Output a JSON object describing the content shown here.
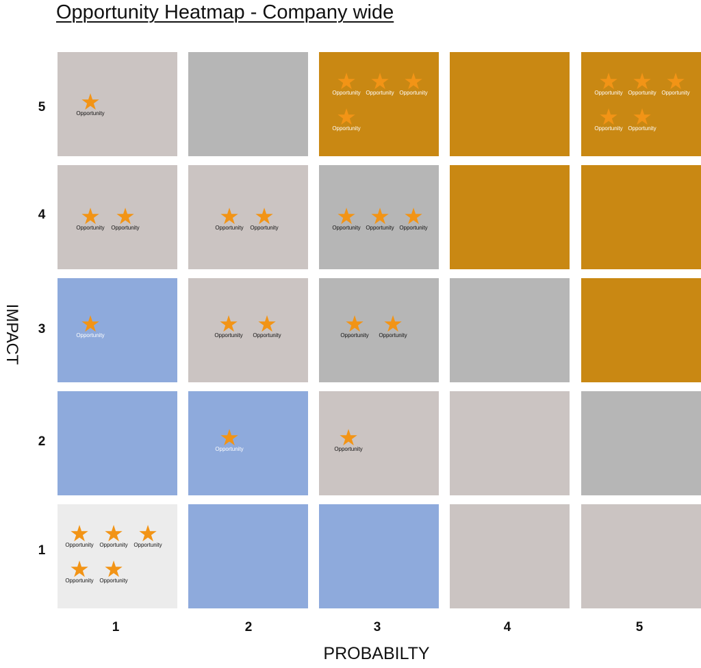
{
  "chart_data": {
    "type": "heatmap",
    "title": "Opportunity Heatmap - Company wide",
    "xlabel": "PROBABILTY",
    "ylabel": "IMPACT",
    "x_categories": [
      "1",
      "2",
      "3",
      "4",
      "5"
    ],
    "y_categories": [
      "1",
      "2",
      "3",
      "4",
      "5"
    ],
    "marker_label": "Opportunity",
    "marker_icon": "star-icon",
    "colors": {
      "very_low": "#ececec",
      "blue": "#8eaadc",
      "light_taupe": "#cbc4c2",
      "gray": "#b6b6b6",
      "gold": "#c98813",
      "star": "#f29416"
    },
    "cells": [
      {
        "probability": 1,
        "impact": 5,
        "color": "#cbc4c2",
        "count": 1
      },
      {
        "probability": 2,
        "impact": 5,
        "color": "#b6b6b6",
        "count": 0
      },
      {
        "probability": 3,
        "impact": 5,
        "color": "#c98813",
        "count": 4
      },
      {
        "probability": 4,
        "impact": 5,
        "color": "#c98813",
        "count": 0
      },
      {
        "probability": 5,
        "impact": 5,
        "color": "#c98813",
        "count": 5
      },
      {
        "probability": 1,
        "impact": 4,
        "color": "#cbc4c2",
        "count": 2
      },
      {
        "probability": 2,
        "impact": 4,
        "color": "#cbc4c2",
        "count": 2
      },
      {
        "probability": 3,
        "impact": 4,
        "color": "#b6b6b6",
        "count": 3
      },
      {
        "probability": 4,
        "impact": 4,
        "color": "#c98813",
        "count": 0
      },
      {
        "probability": 5,
        "impact": 4,
        "color": "#c98813",
        "count": 0
      },
      {
        "probability": 1,
        "impact": 3,
        "color": "#8eaadc",
        "count": 1
      },
      {
        "probability": 2,
        "impact": 3,
        "color": "#cbc4c2",
        "count": 2
      },
      {
        "probability": 3,
        "impact": 3,
        "color": "#b6b6b6",
        "count": 2
      },
      {
        "probability": 4,
        "impact": 3,
        "color": "#b6b6b6",
        "count": 0
      },
      {
        "probability": 5,
        "impact": 3,
        "color": "#c98813",
        "count": 0
      },
      {
        "probability": 1,
        "impact": 2,
        "color": "#8eaadc",
        "count": 0
      },
      {
        "probability": 2,
        "impact": 2,
        "color": "#8eaadc",
        "count": 1
      },
      {
        "probability": 3,
        "impact": 2,
        "color": "#cbc4c2",
        "count": 1
      },
      {
        "probability": 4,
        "impact": 2,
        "color": "#cbc4c2",
        "count": 0
      },
      {
        "probability": 5,
        "impact": 2,
        "color": "#b6b6b6",
        "count": 0
      },
      {
        "probability": 1,
        "impact": 1,
        "color": "#ececec",
        "count": 5
      },
      {
        "probability": 2,
        "impact": 1,
        "color": "#8eaadc",
        "count": 0
      },
      {
        "probability": 3,
        "impact": 1,
        "color": "#8eaadc",
        "count": 0
      },
      {
        "probability": 4,
        "impact": 1,
        "color": "#cbc4c2",
        "count": 0
      },
      {
        "probability": 5,
        "impact": 1,
        "color": "#cbc4c2",
        "count": 0
      }
    ]
  }
}
